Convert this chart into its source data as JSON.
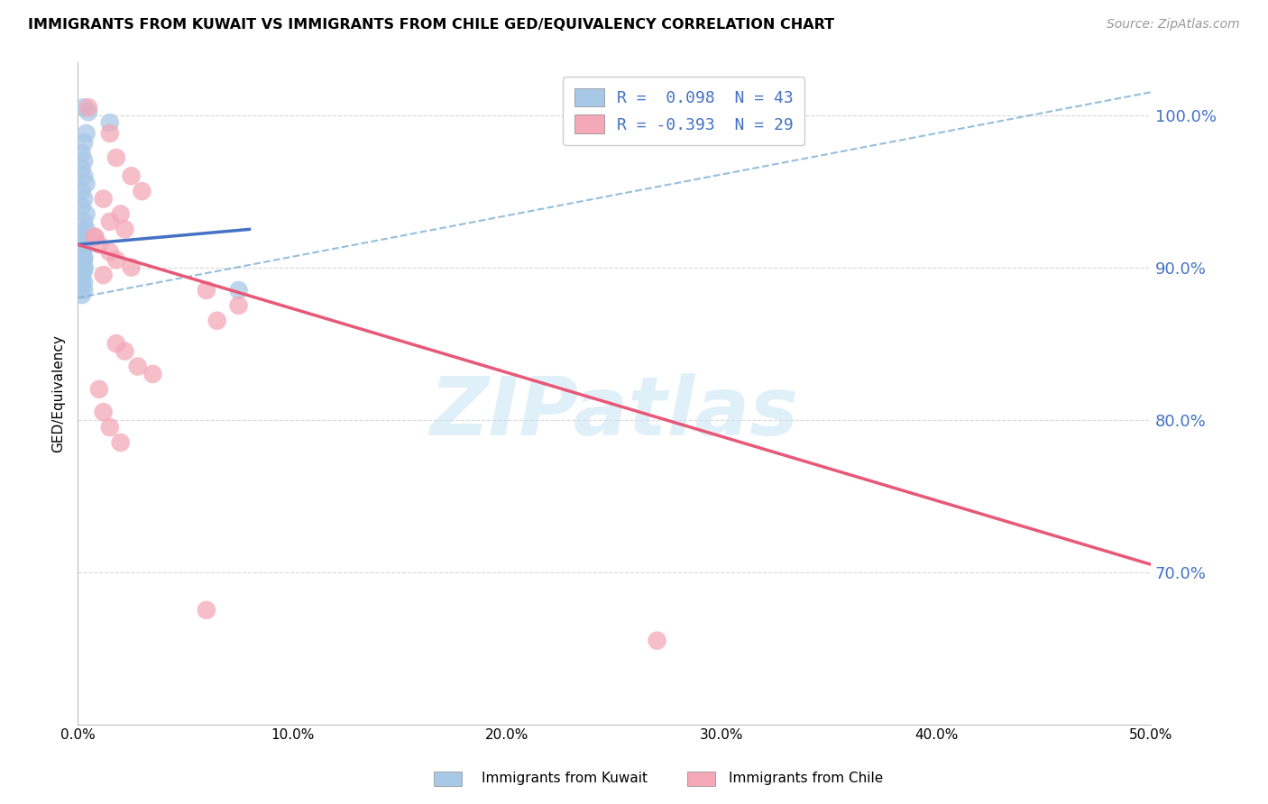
{
  "title": "IMMIGRANTS FROM KUWAIT VS IMMIGRANTS FROM CHILE GED/EQUIVALENCY CORRELATION CHART",
  "source": "Source: ZipAtlas.com",
  "ylabel": "GED/Equivalency",
  "xmin": 0.0,
  "xmax": 50.0,
  "ymin": 60.0,
  "ymax": 103.5,
  "yticks": [
    70.0,
    80.0,
    90.0,
    100.0
  ],
  "xticks": [
    0.0,
    10.0,
    20.0,
    30.0,
    40.0,
    50.0
  ],
  "legend_kuwait": "Immigrants from Kuwait",
  "legend_chile": "Immigrants from Chile",
  "R_kuwait": 0.098,
  "N_kuwait": 43,
  "R_chile": -0.393,
  "N_chile": 29,
  "color_kuwait": "#a8c8e8",
  "color_chile": "#f4a8b8",
  "color_kuwait_line_solid": "#4472c4",
  "color_kuwait_line_dashed": "#7bafd4",
  "color_chile_line": "#e85878",
  "color_right_axis": "#4472c4",
  "color_grid": "#d8d8d8",
  "watermark_text": "ZIPatlas",
  "kuwait_x": [
    0.3,
    0.5,
    1.5,
    0.4,
    0.3,
    0.2,
    0.3,
    0.2,
    0.3,
    0.4,
    0.2,
    0.3,
    0.2,
    0.4,
    0.3,
    0.4,
    0.2,
    0.3,
    0.2,
    0.2,
    0.3,
    0.2,
    0.2,
    0.3,
    0.2,
    0.3,
    0.3,
    0.2,
    0.2,
    0.3,
    0.2,
    0.3,
    0.2,
    7.5,
    0.2,
    0.2,
    0.3,
    0.3,
    0.2,
    0.2,
    0.3,
    0.2,
    0.2
  ],
  "kuwait_y": [
    100.5,
    100.2,
    99.5,
    98.8,
    98.2,
    97.5,
    97.0,
    96.5,
    96.0,
    95.5,
    95.0,
    94.5,
    94.0,
    93.5,
    93.0,
    92.5,
    92.3,
    92.0,
    91.8,
    91.5,
    91.3,
    91.0,
    90.8,
    90.5,
    90.3,
    90.0,
    89.8,
    89.5,
    89.2,
    89.0,
    88.8,
    88.5,
    88.2,
    88.5,
    91.0,
    91.2,
    91.4,
    90.7,
    90.5,
    90.2,
    90.0,
    89.8,
    89.5
  ],
  "chile_x": [
    0.5,
    1.5,
    1.8,
    2.5,
    3.0,
    1.2,
    2.0,
    1.5,
    2.2,
    0.8,
    1.0,
    1.5,
    1.8,
    2.5,
    1.2,
    6.0,
    7.5,
    6.5,
    1.8,
    2.2,
    2.8,
    3.5,
    1.0,
    1.2,
    1.5,
    2.0,
    6.0,
    27.0,
    0.8
  ],
  "chile_y": [
    100.5,
    98.8,
    97.2,
    96.0,
    95.0,
    94.5,
    93.5,
    93.0,
    92.5,
    92.0,
    91.5,
    91.0,
    90.5,
    90.0,
    89.5,
    88.5,
    87.5,
    86.5,
    85.0,
    84.5,
    83.5,
    83.0,
    82.0,
    80.5,
    79.5,
    78.5,
    67.5,
    65.5,
    92.0
  ],
  "solid_blue_x0": 0.0,
  "solid_blue_y0": 91.5,
  "solid_blue_x1": 8.0,
  "solid_blue_y1": 92.5,
  "solid_pink_x0": 0.0,
  "solid_pink_y0": 91.5,
  "solid_pink_x1": 50.0,
  "solid_pink_y1": 70.5,
  "dashed_blue_x0": 0.0,
  "dashed_blue_y0": 88.0,
  "dashed_blue_x1": 50.0,
  "dashed_blue_y1": 101.5
}
